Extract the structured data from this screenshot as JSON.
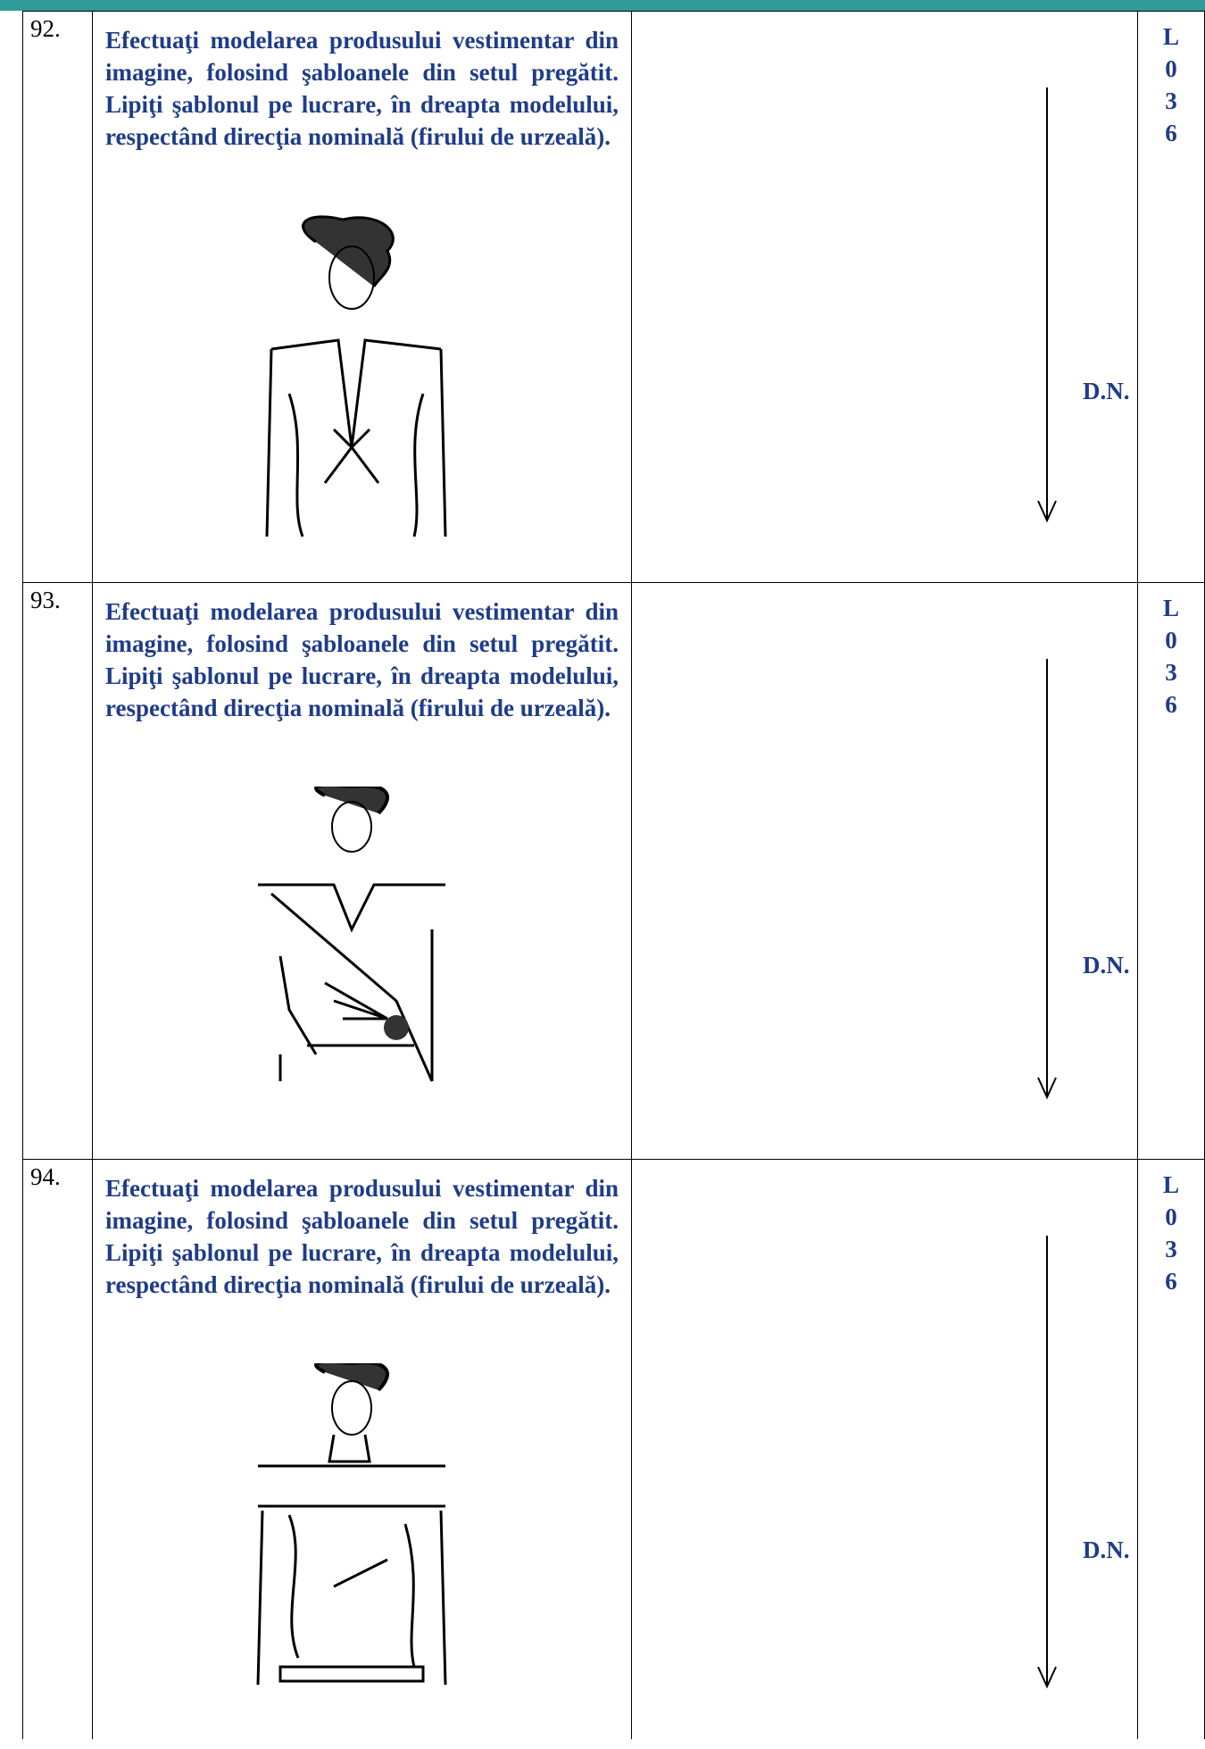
{
  "rows": [
    {
      "number": "92.",
      "instruction": "Efectuaţi modelarea produsului vestimentar din imagine, folosind şabloanele din setul pregătit. Lipiţi şablonul pe lucrare, în dreapta modelului, respectând direcţia nominală (firului de urzeală).",
      "direction_label": "D.N.",
      "code": [
        "L",
        "0",
        "3",
        "6"
      ]
    },
    {
      "number": "93.",
      "instruction": "Efectuaţi modelarea produsului vestimentar din imagine, folosind şabloanele din setul pregătit. Lipiţi şablonul pe lucrare, în dreapta modelului, respectând direcţia nominală (firului de urzeală).",
      "direction_label": "D.N.",
      "code": [
        "L",
        "0",
        "3",
        "6"
      ]
    },
    {
      "number": "94.",
      "instruction": "Efectuaţi modelarea produsului vestimentar din imagine, folosind şabloanele din setul pregătit. Lipiţi şablonul pe lucrare, în dreapta modelului, respectând direcţia nominală (firului de urzeală).",
      "direction_label": "D.N.",
      "code": [
        "L",
        "0",
        "3",
        "6"
      ]
    }
  ]
}
